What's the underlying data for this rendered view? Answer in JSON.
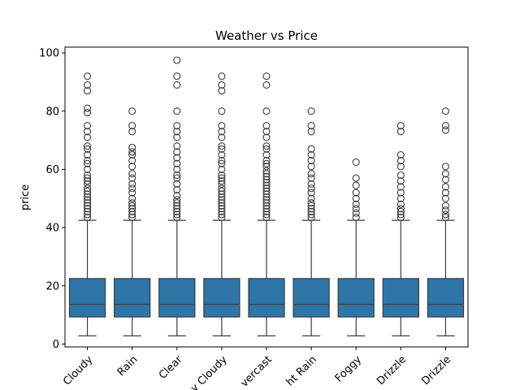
{
  "chart_data": {
    "type": "box",
    "title": "Weather vs Price",
    "xlabel": "",
    "ylabel": "price",
    "ylim": [
      -1,
      102
    ],
    "yticks": [
      0,
      20,
      40,
      60,
      80,
      100
    ],
    "box_color": "#2e75a8",
    "categories": [
      "Cloudy",
      "Rain",
      "Clear",
      "Partly Cloudy",
      "Overcast",
      "Light Rain",
      "Foggy",
      "Drizzle",
      "Freezing Drizzle"
    ],
    "category_tick_labels": [
      "Cloudy",
      "Rain",
      "Clear",
      "y Cloudy",
      "vercast",
      "ht Rain",
      "Foggy",
      "Drizzle",
      "Drizzle"
    ],
    "boxes": [
      {
        "category": "Cloudy",
        "whisker_low": 2.8,
        "q1": 9.3,
        "median": 13.6,
        "q3": 22.5,
        "whisker_high": 42.5,
        "outliers": [
          43.5,
          44.5,
          45.5,
          46.5,
          47.5,
          48.5,
          49.5,
          50.5,
          51.5,
          52.5,
          53.5,
          55,
          56,
          57,
          58,
          60,
          62,
          63,
          65,
          67,
          68,
          71,
          73,
          75,
          79.5,
          81,
          87,
          89,
          92
        ]
      },
      {
        "category": "Rain",
        "whisker_low": 2.8,
        "q1": 9.3,
        "median": 13.6,
        "q3": 22.5,
        "whisker_high": 42.5,
        "outliers": [
          43.5,
          44.5,
          45.5,
          46.5,
          47.5,
          48.5,
          50,
          52,
          53.5,
          55,
          57,
          58.5,
          61,
          63,
          65,
          66,
          67.5,
          73,
          75,
          80
        ]
      },
      {
        "category": "Clear",
        "whisker_low": 2.8,
        "q1": 9.3,
        "median": 13.6,
        "q3": 22.5,
        "whisker_high": 42.5,
        "outliers": [
          43.5,
          44.5,
          45.5,
          46.5,
          47.5,
          48.5,
          49.5,
          51,
          53,
          55,
          57,
          58,
          60,
          62,
          64,
          66,
          68,
          71,
          73,
          75,
          80,
          89,
          92,
          97.5
        ]
      },
      {
        "category": "Partly Cloudy",
        "whisker_low": 2.8,
        "q1": 9.3,
        "median": 13.6,
        "q3": 22.5,
        "whisker_high": 42.5,
        "outliers": [
          43.5,
          44.5,
          45.5,
          46.5,
          47.5,
          48.5,
          49.5,
          50.5,
          51.5,
          52.5,
          53.5,
          55,
          56,
          57,
          58,
          60,
          62,
          63,
          65,
          67,
          68,
          71,
          73,
          75,
          80,
          87,
          89,
          92
        ]
      },
      {
        "category": "Overcast",
        "whisker_low": 2.8,
        "q1": 9.3,
        "median": 13.6,
        "q3": 22.5,
        "whisker_high": 42.5,
        "outliers": [
          43.5,
          44.5,
          45.5,
          46.5,
          47.5,
          48.5,
          49.5,
          50.5,
          51.5,
          52.5,
          53.5,
          54.5,
          55.5,
          56.5,
          57.5,
          58.5,
          59.5,
          61,
          62,
          63,
          65,
          67,
          68,
          71,
          73,
          75,
          80,
          89,
          92
        ]
      },
      {
        "category": "Light Rain",
        "whisker_low": 2.8,
        "q1": 9.3,
        "median": 13.6,
        "q3": 22.5,
        "whisker_high": 42.5,
        "outliers": [
          43.5,
          44.5,
          45.5,
          46.5,
          47.5,
          48.5,
          50,
          52,
          53.5,
          55,
          57,
          58.5,
          61,
          63,
          65,
          67,
          73,
          75,
          80
        ]
      },
      {
        "category": "Foggy",
        "whisker_low": 2.8,
        "q1": 9.3,
        "median": 13.6,
        "q3": 22.5,
        "whisker_high": 42.5,
        "outliers": [
          43.5,
          45,
          46.5,
          48,
          50,
          52,
          54.5,
          57,
          62.5
        ]
      },
      {
        "category": "Drizzle",
        "whisker_low": 2.8,
        "q1": 9.3,
        "median": 13.6,
        "q3": 22.5,
        "whisker_high": 42.5,
        "outliers": [
          43.5,
          44.5,
          45.5,
          46.5,
          48,
          50,
          52,
          54,
          56,
          58,
          61,
          63,
          65,
          73,
          75
        ]
      },
      {
        "category": "Freezing Drizzle",
        "whisker_low": 2.8,
        "q1": 9.3,
        "median": 13.6,
        "q3": 22.5,
        "whisker_high": 42.5,
        "outliers": [
          43.5,
          44.5,
          46,
          47.5,
          50,
          52,
          54,
          56.5,
          58.5,
          61,
          73.5,
          75,
          80
        ]
      }
    ]
  }
}
